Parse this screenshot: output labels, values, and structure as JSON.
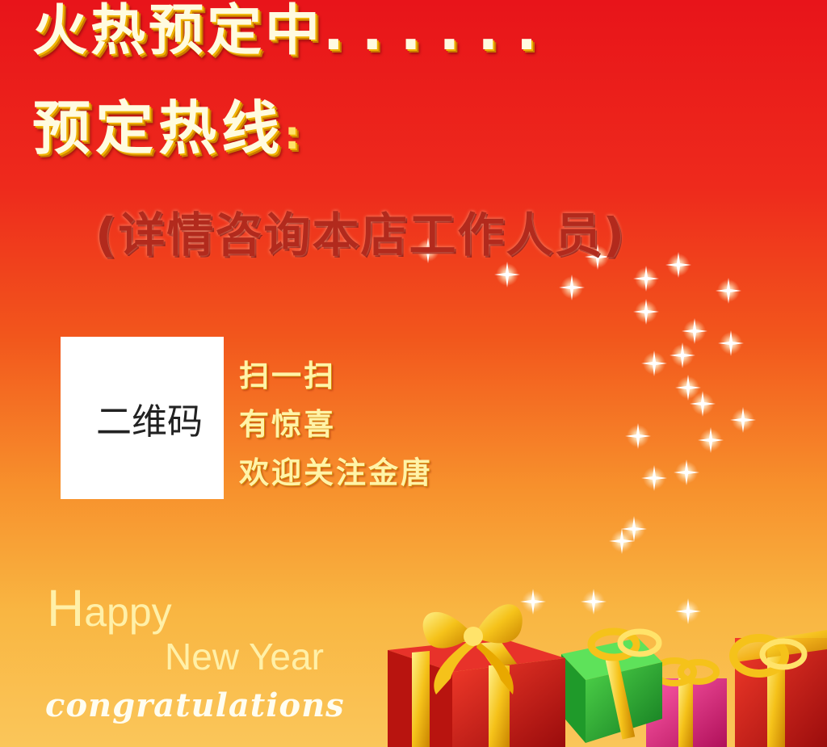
{
  "headline": {
    "text": "火热预定中",
    "dots": "......"
  },
  "hotline": {
    "label": "预定热线",
    "colon": ":"
  },
  "contact_note": "(详情咨询本店工作人员)",
  "qr_placeholder": "二维码",
  "scan_lines": [
    "扫一扫",
    "有惊喜",
    "欢迎关注金唐"
  ],
  "greeting": {
    "happy_first": "H",
    "happy_rest": "appy",
    "new_year": "New Year",
    "congrats": "congratulations"
  },
  "colors": {
    "accent_red": "#e8141a",
    "gold": "#f0b400",
    "cream": "#fffbe0"
  }
}
